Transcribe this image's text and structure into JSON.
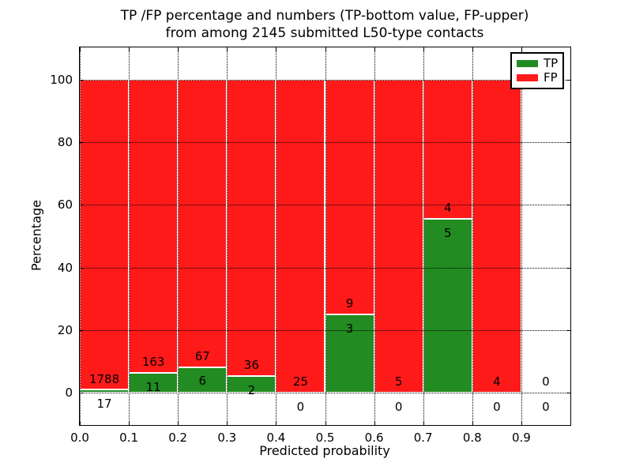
{
  "chart_data": {
    "type": "bar",
    "stacked": true,
    "normalized_to_percent": true,
    "title_lines": [
      "TP /FP percentage and numbers (TP-bottom value, FP-upper)",
      "from among 2145 submitted L50-type contacts"
    ],
    "xlabel": "Predicted probability",
    "ylabel": "Percentage",
    "bin_width": 0.1,
    "categories": [
      0.0,
      0.1,
      0.2,
      0.3,
      0.4,
      0.5,
      0.6,
      0.7,
      0.8,
      0.9
    ],
    "series": [
      {
        "name": "TP",
        "color": "#228b22",
        "values": [
          17,
          11,
          6,
          2,
          0,
          3,
          0,
          5,
          0,
          0
        ]
      },
      {
        "name": "FP",
        "color": "#ff1a1a",
        "values": [
          1788,
          163,
          67,
          36,
          25,
          9,
          5,
          4,
          4,
          0
        ]
      }
    ],
    "xticks": [
      "0.0",
      "0.1",
      "0.2",
      "0.3",
      "0.4",
      "0.5",
      "0.6",
      "0.7",
      "0.8",
      "0.9"
    ],
    "yticks": [
      0,
      20,
      40,
      60,
      80,
      100
    ],
    "xlim": [
      0,
      1.0
    ],
    "ylim": [
      -10.3,
      110.3
    ],
    "grid": true,
    "grid_style": "dotted",
    "bar_edge_color": "#ffffff",
    "legend": {
      "position": "upper right",
      "entries": [
        {
          "label": "TP",
          "color": "#228b22"
        },
        {
          "label": "FP",
          "color": "#ff1a1a"
        }
      ]
    }
  }
}
